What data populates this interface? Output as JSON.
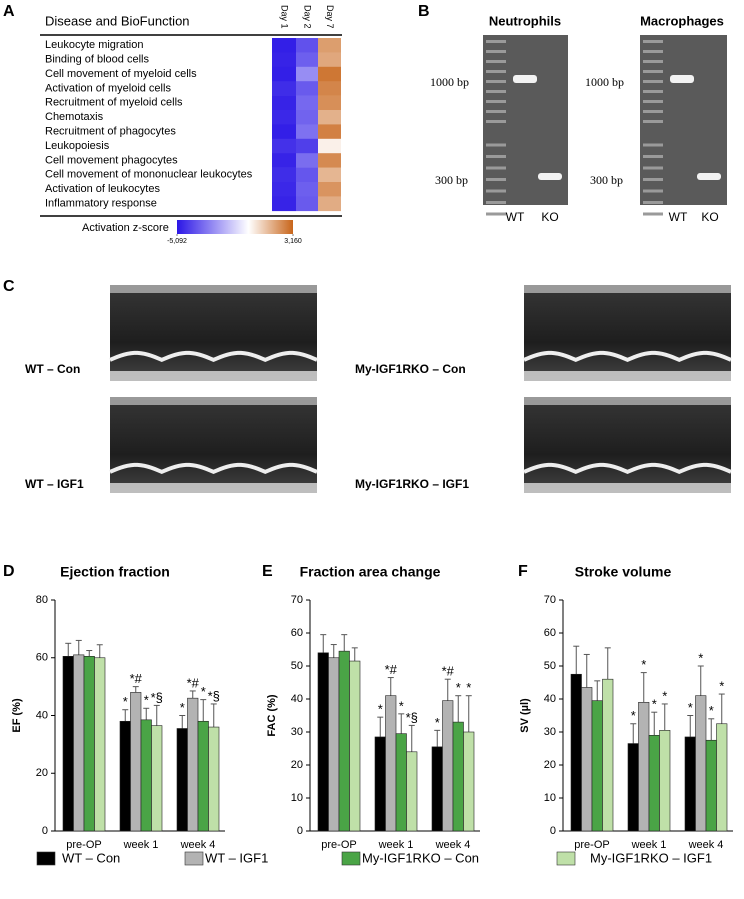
{
  "panel_letters": [
    "A",
    "B",
    "C",
    "D",
    "E",
    "F"
  ],
  "legend": [
    {
      "name": "WT – Con",
      "color": "#000000"
    },
    {
      "name": "WT – IGF1",
      "color": "#b3b3b3"
    },
    {
      "name": "My-IGF1RKO – Con",
      "color": "#4aa446"
    },
    {
      "name": "My-IGF1RKO – IGF1",
      "color": "#bfe0a8"
    }
  ],
  "gels": [
    {
      "title": "Neutrophils",
      "markers": [
        "1000 bp",
        "300 bp"
      ],
      "lanes": [
        "WT",
        "KO"
      ]
    },
    {
      "title": "Macrophages",
      "markers": [
        "1000 bp",
        "300 bp"
      ],
      "lanes": [
        "WT",
        "KO"
      ]
    }
  ],
  "echo_labels": [
    "WT – Con",
    "WT – IGF1",
    "My-IGF1RKO – Con",
    "My-IGF1RKO – IGF1"
  ],
  "chart_data": [
    {
      "type": "heatmap",
      "title": "Disease and BioFunction",
      "columns": [
        "Day 1",
        "Day 2",
        "Day 7"
      ],
      "rows": [
        "Leukocyte migration",
        "Binding of blood cells",
        "Cell movement  of myeloid cells",
        "Activation of myeloid cells",
        "Recruitment of myeloid cells",
        "Chemotaxis",
        "Recruitment of phagocytes",
        "Leukopoiesis",
        "Cell movement  phagocytes",
        "Cell movement of mononuclear leukocytes",
        "Activation of leukocytes",
        "Inflammatory response"
      ],
      "values": [
        [
          -4.9,
          -3.8,
          2.0
        ],
        [
          -4.8,
          -3.5,
          1.8
        ],
        [
          -4.9,
          -2.5,
          2.8
        ],
        [
          -4.6,
          -3.6,
          2.5
        ],
        [
          -4.8,
          -3.3,
          2.3
        ],
        [
          -4.7,
          -3.4,
          1.6
        ],
        [
          -4.9,
          -3.1,
          2.6
        ],
        [
          -4.5,
          -4.2,
          0.3
        ],
        [
          -4.8,
          -3.2,
          2.4
        ],
        [
          -4.6,
          -3.7,
          1.5
        ],
        [
          -4.7,
          -3.5,
          2.2
        ],
        [
          -4.8,
          -3.6,
          1.7
        ]
      ],
      "colorbar_label": "Activation z-score",
      "zticks": [
        {
          "value": -5.092,
          "label": "-5,092"
        },
        {
          "value": 3.16,
          "label": "3,160"
        }
      ],
      "colors": [
        "#2b16e6",
        "#ffffff",
        "#c8651a"
      ]
    },
    {
      "type": "bar",
      "title": "Ejection fraction",
      "y_label": "EF (%)",
      "categories": [
        "pre-OP",
        "week 1",
        "week 4"
      ],
      "ylim": [
        0,
        80
      ],
      "yticks": [
        0,
        20,
        40,
        60,
        80
      ],
      "series": [
        {
          "values": [
            60.5,
            38,
            35.5
          ],
          "errors": [
            4.5,
            4,
            4.5
          ],
          "labels": [
            null,
            "*",
            "*"
          ]
        },
        {
          "values": [
            61,
            48,
            46
          ],
          "errors": [
            5,
            2,
            2.5
          ],
          "labels": [
            null,
            "*#",
            "*#"
          ]
        },
        {
          "values": [
            60.5,
            38.5,
            38
          ],
          "errors": [
            2,
            4,
            7.5
          ],
          "labels": [
            null,
            "*",
            "*"
          ]
        },
        {
          "values": [
            60,
            36.5,
            36
          ],
          "errors": [
            4.5,
            7,
            8
          ],
          "labels": [
            null,
            "*§",
            "*§"
          ]
        }
      ]
    },
    {
      "type": "bar",
      "title": "Fraction area change",
      "y_label": "FAC (%)",
      "categories": [
        "pre-OP",
        "week 1",
        "week 4"
      ],
      "ylim": [
        0,
        70
      ],
      "yticks": [
        0,
        10,
        20,
        30,
        40,
        50,
        60,
        70
      ],
      "series": [
        {
          "values": [
            54,
            28.5,
            25.5
          ],
          "errors": [
            5.5,
            6,
            5
          ],
          "labels": [
            null,
            "*",
            "*"
          ]
        },
        {
          "values": [
            52.5,
            41,
            39.5
          ],
          "errors": [
            4,
            5.5,
            6.5
          ],
          "labels": [
            null,
            "*#",
            "*#"
          ]
        },
        {
          "values": [
            54.5,
            29.5,
            33
          ],
          "errors": [
            5,
            6,
            8
          ],
          "labels": [
            null,
            "*",
            "*"
          ]
        },
        {
          "values": [
            51.5,
            24,
            30
          ],
          "errors": [
            4,
            8,
            11
          ],
          "labels": [
            null,
            "*§",
            "*"
          ]
        }
      ]
    },
    {
      "type": "bar",
      "title": "Stroke volume",
      "y_label": "SV (µl)",
      "categories": [
        "pre-OP",
        "week 1",
        "week 4"
      ],
      "ylim": [
        0,
        70
      ],
      "yticks": [
        0,
        10,
        20,
        30,
        40,
        50,
        60,
        70
      ],
      "series": [
        {
          "values": [
            47.5,
            26.5,
            28.5
          ],
          "errors": [
            8.5,
            6,
            6.5
          ],
          "labels": [
            null,
            "*",
            "*"
          ]
        },
        {
          "values": [
            43.5,
            39,
            41
          ],
          "errors": [
            10,
            9,
            9
          ],
          "labels": [
            null,
            "*",
            "*"
          ]
        },
        {
          "values": [
            39.5,
            29,
            27.5
          ],
          "errors": [
            6,
            7,
            6.5
          ],
          "labels": [
            null,
            "*",
            "*"
          ]
        },
        {
          "values": [
            46,
            30.5,
            32.5
          ],
          "errors": [
            9.5,
            8,
            9
          ],
          "labels": [
            null,
            "*",
            "*"
          ]
        }
      ]
    }
  ]
}
